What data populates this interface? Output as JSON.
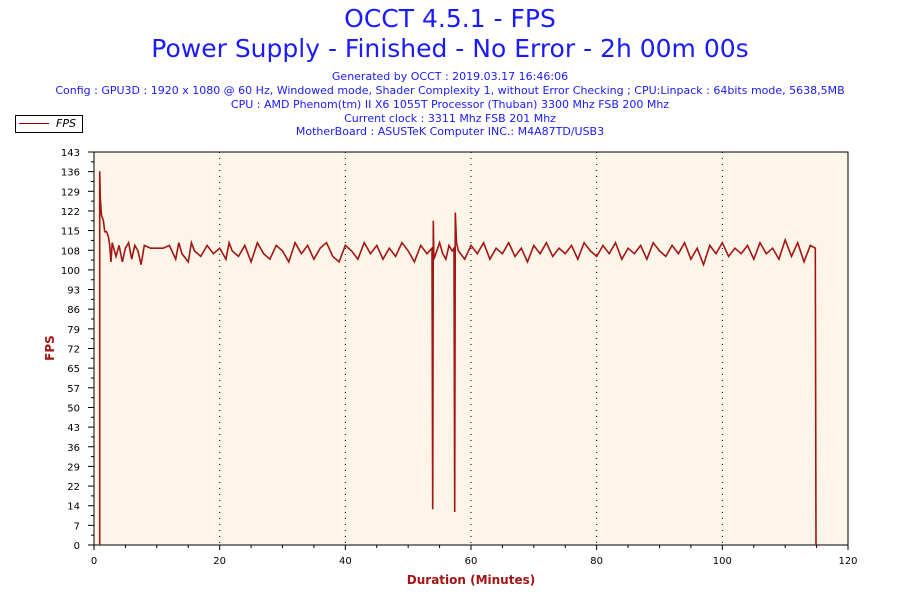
{
  "header": {
    "title": "OCCT 4.5.1 - FPS",
    "subtitle": "Power Supply - Finished - No Error - 2h 00m 00s",
    "generated": "Generated by OCCT : 2019.03.17 16:46:06",
    "config": "Config : GPU3D : 1920 x 1080 @ 60 Hz, Windowed mode, Shader Complexity 1, without Error Checking ; CPU:Linpack : 64bits mode, 5638,5MB",
    "cpu": "CPU : AMD Phenom(tm) II X6 1055T Processor (Thuban) 3300 Mhz FSB 200 Mhz",
    "clock": "Current clock : 3311 Mhz FSB 201 Mhz",
    "motherboard": "MotherBoard : ASUSTeK Computer INC.: M4A87TD/USB3"
  },
  "colors": {
    "line": "#a31515",
    "plot_bg": "#fdf6e8",
    "title": "#1a1aff",
    "axis_label": "#a31515"
  },
  "chart_data": {
    "type": "line",
    "xlabel": "Duration (Minutes)",
    "ylabel": "FPS",
    "xlim": [
      0,
      120
    ],
    "ylim": [
      0,
      143
    ],
    "xticks": [
      "0",
      "20",
      "40",
      "60",
      "80",
      "100",
      "120"
    ],
    "yticks": [
      "0",
      "7",
      "14",
      "22",
      "29",
      "36",
      "43",
      "50",
      "57",
      "65",
      "72",
      "79",
      "86",
      "93",
      "100",
      "108",
      "115",
      "122",
      "129",
      "136",
      "143"
    ],
    "grid": "vertical dotted",
    "legend": {
      "position": "top-left",
      "entries": [
        "FPS"
      ]
    },
    "series": [
      {
        "name": "FPS",
        "points": [
          [
            0.9,
            0
          ],
          [
            0.9,
            136
          ],
          [
            1.0,
            126
          ],
          [
            1.2,
            120
          ],
          [
            1.5,
            118
          ],
          [
            1.7,
            114
          ],
          [
            2.0,
            114
          ],
          [
            2.3,
            112
          ],
          [
            2.5,
            109
          ],
          [
            2.7,
            103
          ],
          [
            2.9,
            110
          ],
          [
            3.5,
            105
          ],
          [
            4,
            109
          ],
          [
            4.5,
            103
          ],
          [
            5,
            108
          ],
          [
            5.5,
            110
          ],
          [
            6,
            104
          ],
          [
            6.5,
            109
          ],
          [
            7,
            107
          ],
          [
            7.5,
            102
          ],
          [
            8,
            109
          ],
          [
            9,
            108
          ],
          [
            10,
            108
          ],
          [
            11,
            108
          ],
          [
            12,
            109
          ],
          [
            13,
            104
          ],
          [
            13.5,
            110
          ],
          [
            14,
            106
          ],
          [
            15,
            103
          ],
          [
            15.5,
            110
          ],
          [
            16,
            107
          ],
          [
            17,
            105
          ],
          [
            18,
            109
          ],
          [
            19,
            106
          ],
          [
            20,
            108
          ],
          [
            21,
            104
          ],
          [
            21.5,
            110
          ],
          [
            22,
            107
          ],
          [
            23,
            105
          ],
          [
            24,
            109
          ],
          [
            25,
            103
          ],
          [
            26,
            110
          ],
          [
            27,
            106
          ],
          [
            28,
            104
          ],
          [
            29,
            109
          ],
          [
            30,
            107
          ],
          [
            31,
            103
          ],
          [
            32,
            110
          ],
          [
            33,
            106
          ],
          [
            34,
            109
          ],
          [
            35,
            104
          ],
          [
            36,
            108
          ],
          [
            37,
            110
          ],
          [
            38,
            105
          ],
          [
            39,
            103
          ],
          [
            40,
            109
          ],
          [
            41,
            107
          ],
          [
            42,
            104
          ],
          [
            43,
            110
          ],
          [
            44,
            106
          ],
          [
            45,
            109
          ],
          [
            46,
            104
          ],
          [
            47,
            108
          ],
          [
            48,
            105
          ],
          [
            49,
            110
          ],
          [
            50,
            107
          ],
          [
            51,
            103
          ],
          [
            52,
            109
          ],
          [
            53,
            106
          ],
          [
            53.8,
            108
          ],
          [
            53.9,
            13
          ],
          [
            54.0,
            118
          ],
          [
            54.1,
            104
          ],
          [
            55,
            110
          ],
          [
            55.5,
            106
          ],
          [
            56,
            104
          ],
          [
            56.5,
            109
          ],
          [
            57,
            107
          ],
          [
            57.3,
            108
          ],
          [
            57.4,
            12
          ],
          [
            57.5,
            121
          ],
          [
            57.7,
            110
          ],
          [
            58,
            107
          ],
          [
            59,
            104
          ],
          [
            60,
            109
          ],
          [
            61,
            106
          ],
          [
            62,
            110
          ],
          [
            63,
            104
          ],
          [
            64,
            108
          ],
          [
            65,
            106
          ],
          [
            66,
            110
          ],
          [
            67,
            105
          ],
          [
            68,
            108
          ],
          [
            69,
            103
          ],
          [
            70,
            109
          ],
          [
            71,
            106
          ],
          [
            72,
            110
          ],
          [
            73,
            105
          ],
          [
            74,
            108
          ],
          [
            75,
            106
          ],
          [
            76,
            109
          ],
          [
            77,
            104
          ],
          [
            78,
            110
          ],
          [
            79,
            107
          ],
          [
            80,
            105
          ],
          [
            81,
            109
          ],
          [
            82,
            106
          ],
          [
            83,
            110
          ],
          [
            84,
            104
          ],
          [
            85,
            108
          ],
          [
            86,
            106
          ],
          [
            87,
            109
          ],
          [
            88,
            104
          ],
          [
            89,
            110
          ],
          [
            90,
            107
          ],
          [
            91,
            105
          ],
          [
            92,
            109
          ],
          [
            93,
            106
          ],
          [
            94,
            110
          ],
          [
            95,
            104
          ],
          [
            96,
            108
          ],
          [
            97,
            102
          ],
          [
            98,
            109
          ],
          [
            99,
            106
          ],
          [
            100,
            110
          ],
          [
            101,
            105
          ],
          [
            102,
            108
          ],
          [
            103,
            106
          ],
          [
            104,
            109
          ],
          [
            105,
            104
          ],
          [
            106,
            110
          ],
          [
            107,
            106
          ],
          [
            108,
            108
          ],
          [
            109,
            104
          ],
          [
            110,
            111
          ],
          [
            111,
            105
          ],
          [
            112,
            110
          ],
          [
            113,
            103
          ],
          [
            114,
            109
          ],
          [
            114.8,
            108
          ],
          [
            114.9,
            0
          ]
        ]
      }
    ]
  }
}
